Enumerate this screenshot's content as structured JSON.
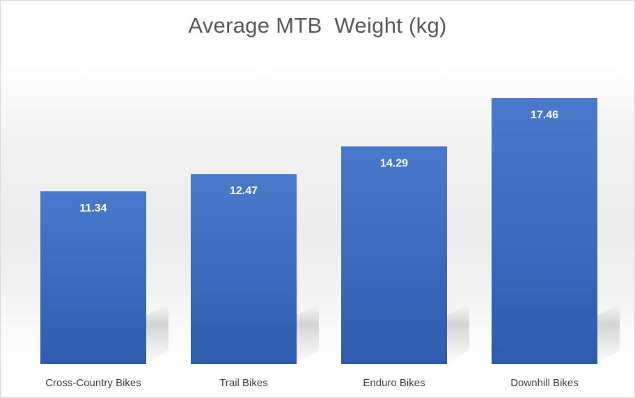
{
  "chart_data": {
    "type": "bar",
    "title": "Average MTB  Weight (kg)",
    "categories": [
      "Cross-Country Bikes",
      "Trail Bikes",
      "Enduro Bikes",
      "Downhill Bikes"
    ],
    "values": [
      11.34,
      12.47,
      14.29,
      17.46
    ],
    "data_labels": [
      "11.34",
      "12.47",
      "14.29",
      "17.46"
    ],
    "xlabel": "",
    "ylabel": "",
    "ylim": [
      0,
      17.46
    ],
    "grid": false,
    "legend": "none",
    "bar_color": "#4472C4"
  }
}
